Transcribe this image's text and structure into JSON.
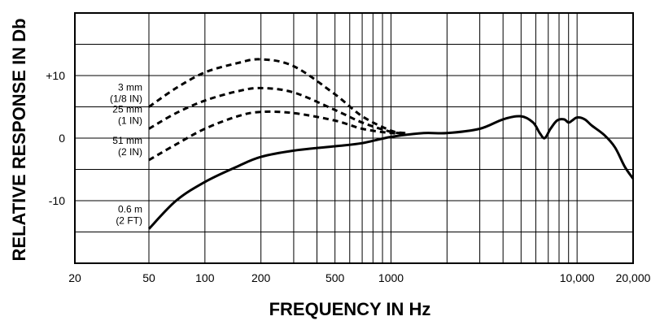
{
  "chart_data": {
    "type": "line",
    "title": "",
    "xlabel": "FREQUENCY IN Hz",
    "ylabel": "RELATIVE RESPONSE IN Db",
    "x_scale": "log",
    "xlim": [
      20,
      20000
    ],
    "ylim": [
      -20,
      20
    ],
    "x_tick_labels": [
      {
        "value": 20,
        "label": "20"
      },
      {
        "value": 50,
        "label": "50"
      },
      {
        "value": 100,
        "label": "100"
      },
      {
        "value": 200,
        "label": "200"
      },
      {
        "value": 500,
        "label": "500"
      },
      {
        "value": 1000,
        "label": "1000"
      },
      {
        "value": 10000,
        "label": "10,000"
      },
      {
        "value": 20000,
        "label": "20,000"
      }
    ],
    "x_gridlines": [
      20,
      50,
      100,
      200,
      300,
      400,
      500,
      600,
      700,
      800,
      900,
      1000,
      2000,
      3000,
      4000,
      5000,
      6000,
      7000,
      8000,
      9000,
      10000,
      20000
    ],
    "y_tick_labels": [
      {
        "value": 10,
        "label": "+10"
      },
      {
        "value": 0,
        "label": "0"
      },
      {
        "value": -10,
        "label": "-10"
      }
    ],
    "y_gridlines": [
      -15,
      -10,
      -5,
      0,
      5,
      10,
      15
    ],
    "grid": true,
    "series": [
      {
        "name": "3 mm (1/8 IN)",
        "name_lines": [
          "3 mm",
          "(1/8 IN)"
        ],
        "style": "dashed",
        "points": [
          [
            50,
            5
          ],
          [
            70,
            8
          ],
          [
            100,
            10.5
          ],
          [
            150,
            12
          ],
          [
            200,
            12.6
          ],
          [
            300,
            11.5
          ],
          [
            500,
            7
          ],
          [
            700,
            3.5
          ],
          [
            1000,
            1.2
          ],
          [
            1200,
            0.8
          ]
        ]
      },
      {
        "name": "25 mm (1 IN)",
        "name_lines": [
          "25 mm",
          "(1 IN)"
        ],
        "style": "dashed",
        "points": [
          [
            50,
            1.5
          ],
          [
            70,
            4
          ],
          [
            100,
            6
          ],
          [
            150,
            7.5
          ],
          [
            200,
            8
          ],
          [
            300,
            7.3
          ],
          [
            500,
            4.5
          ],
          [
            700,
            2.5
          ],
          [
            1000,
            1
          ],
          [
            1200,
            0.8
          ]
        ]
      },
      {
        "name": "51 mm (2 IN)",
        "name_lines": [
          "51 mm",
          "(2 IN)"
        ],
        "style": "dashed",
        "points": [
          [
            50,
            -3.5
          ],
          [
            70,
            -1
          ],
          [
            100,
            1.5
          ],
          [
            150,
            3.5
          ],
          [
            200,
            4.2
          ],
          [
            300,
            4
          ],
          [
            500,
            2.8
          ],
          [
            700,
            1.5
          ],
          [
            1000,
            0.8
          ],
          [
            1200,
            0.8
          ]
        ]
      },
      {
        "name": "0.6 m (2 FT)",
        "name_lines": [
          "0.6 m",
          "(2 FT)"
        ],
        "style": "solid",
        "points": [
          [
            50,
            -14.5
          ],
          [
            70,
            -10
          ],
          [
            100,
            -7
          ],
          [
            150,
            -4.5
          ],
          [
            200,
            -3
          ],
          [
            300,
            -2
          ],
          [
            500,
            -1.3
          ],
          [
            700,
            -0.8
          ],
          [
            1000,
            0.2
          ],
          [
            1500,
            0.8
          ],
          [
            2000,
            0.8
          ],
          [
            3000,
            1.5
          ],
          [
            4000,
            3
          ],
          [
            5000,
            3.5
          ],
          [
            5800,
            2.5
          ],
          [
            6300,
            0.8
          ],
          [
            6700,
            0
          ],
          [
            7200,
            1.5
          ],
          [
            7800,
            2.8
          ],
          [
            8500,
            3
          ],
          [
            9000,
            2.5
          ],
          [
            9400,
            2.8
          ],
          [
            10000,
            3.3
          ],
          [
            11000,
            3
          ],
          [
            12000,
            2
          ],
          [
            14000,
            0.5
          ],
          [
            16000,
            -1.5
          ],
          [
            18000,
            -4.5
          ],
          [
            20000,
            -6.5
          ]
        ]
      }
    ]
  }
}
